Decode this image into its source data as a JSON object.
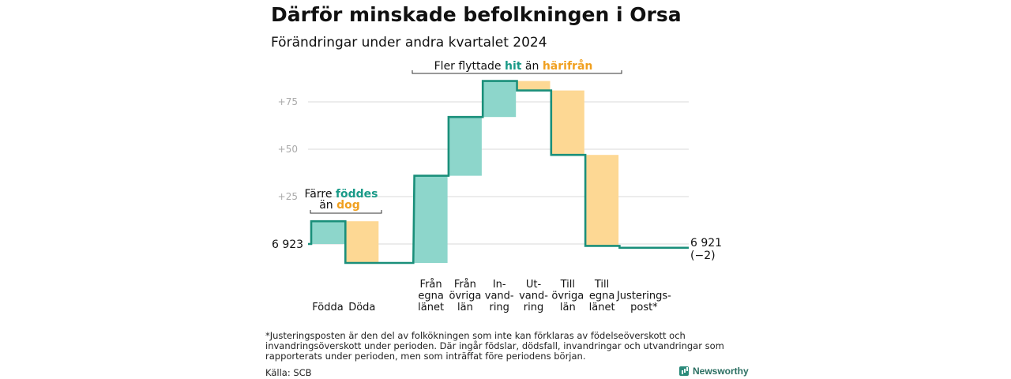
{
  "header": {
    "title": "Därför minskade befolkningen i Orsa",
    "subtitle": "Förändringar under andra kvartalet 2024"
  },
  "colors": {
    "in": "#8dd6cb",
    "out": "#fdd894",
    "line": "#1a8f7a",
    "in_text": "#1a9a88",
    "out_text": "#f0a020",
    "grid": "#d8d8d8",
    "tick": "#aaaaaa"
  },
  "chart_data": {
    "type": "waterfall",
    "baseline": 6923,
    "baseline_label": "6 923",
    "end_value": 6921,
    "end_label": "6 921",
    "end_change_label": "(−2)",
    "y_ticks": [
      {
        "value": 25,
        "label": "+25"
      },
      {
        "value": 50,
        "label": "+50"
      },
      {
        "value": 75,
        "label": "+75"
      }
    ],
    "grid": true,
    "steps": [
      {
        "label_lines": [
          "Födda"
        ],
        "start": 0,
        "end": 12,
        "kind": "in"
      },
      {
        "label_lines": [
          "Döda"
        ],
        "start": 12,
        "end": -10,
        "kind": "out"
      },
      {
        "label_lines": [
          "Från",
          "egna",
          "länet"
        ],
        "start": -10,
        "end": 36,
        "kind": "in"
      },
      {
        "label_lines": [
          "Från",
          "övriga",
          "län"
        ],
        "start": 36,
        "end": 67,
        "kind": "in"
      },
      {
        "label_lines": [
          "In-",
          "vand-",
          "ring"
        ],
        "start": 67,
        "end": 86,
        "kind": "in"
      },
      {
        "label_lines": [
          "Ut-",
          "vand-",
          "ring"
        ],
        "start": 86,
        "end": 81,
        "kind": "out"
      },
      {
        "label_lines": [
          "Till",
          "övriga",
          "län"
        ],
        "start": 81,
        "end": 47,
        "kind": "out"
      },
      {
        "label_lines": [
          "Till",
          "egna",
          "länet"
        ],
        "start": 47,
        "end": -1,
        "kind": "out"
      },
      {
        "label_lines": [
          "Justerings-",
          "post*"
        ],
        "start": -1,
        "end": -2,
        "kind": "adj"
      }
    ],
    "annotations": {
      "births": {
        "line1": "Färre ",
        "line1_hl": "föddes",
        "line2": "än ",
        "line2_hl": "dog"
      },
      "migration": {
        "text": "Fler flyttade ",
        "hl1": "hit",
        "mid": " än ",
        "hl2": "härifrån"
      }
    }
  },
  "footer": {
    "footnote": "*Justeringsposten är den del av folkökningen som inte kan förklaras av födelseöverskott och invandringsöverskott under perioden. Där ingår födslar, dödsfall, invandringar och utvandringar som rapporterats under perioden, men som inträffat före periodens början.",
    "source": "Källa: SCB",
    "brand": "Newsworthy"
  }
}
